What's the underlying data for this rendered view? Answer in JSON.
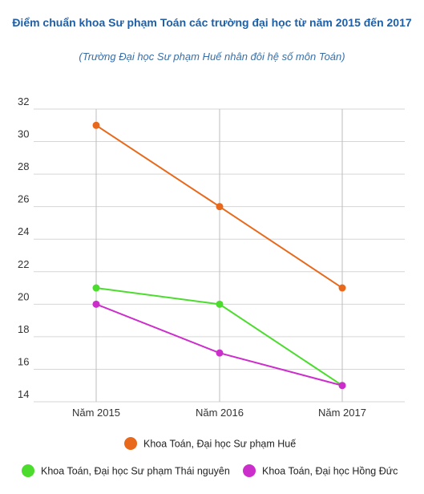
{
  "chart_data": {
    "type": "line",
    "title": "Điểm chuẩn khoa Sư phạm Toán các trường đại học từ năm 2015 đến 2017",
    "subtitle": "(Trường Đại học Sư phạm Huế nhân đôi hệ số môn Toán)",
    "xlabel": "",
    "ylabel": "",
    "categories": [
      "Năm 2015",
      "Năm 2016",
      "Năm 2017"
    ],
    "ylim": [
      14,
      32
    ],
    "yticks": [
      14,
      16,
      18,
      20,
      22,
      24,
      26,
      28,
      30,
      32
    ],
    "grid": true,
    "legend": "bottom",
    "series": [
      {
        "name": "Khoa Toán, Đại học Sư phạm Huế",
        "color": "#e8691b",
        "values": [
          31,
          26,
          21
        ]
      },
      {
        "name": "Khoa Toán, Đại học Sư phạm Thái nguyên",
        "color": "#4cdc2e",
        "values": [
          21,
          20,
          15
        ]
      },
      {
        "name": "Khoa Toán, Đại học Hồng Đức",
        "color": "#cc2ecb",
        "values": [
          20,
          17,
          15
        ]
      }
    ]
  }
}
